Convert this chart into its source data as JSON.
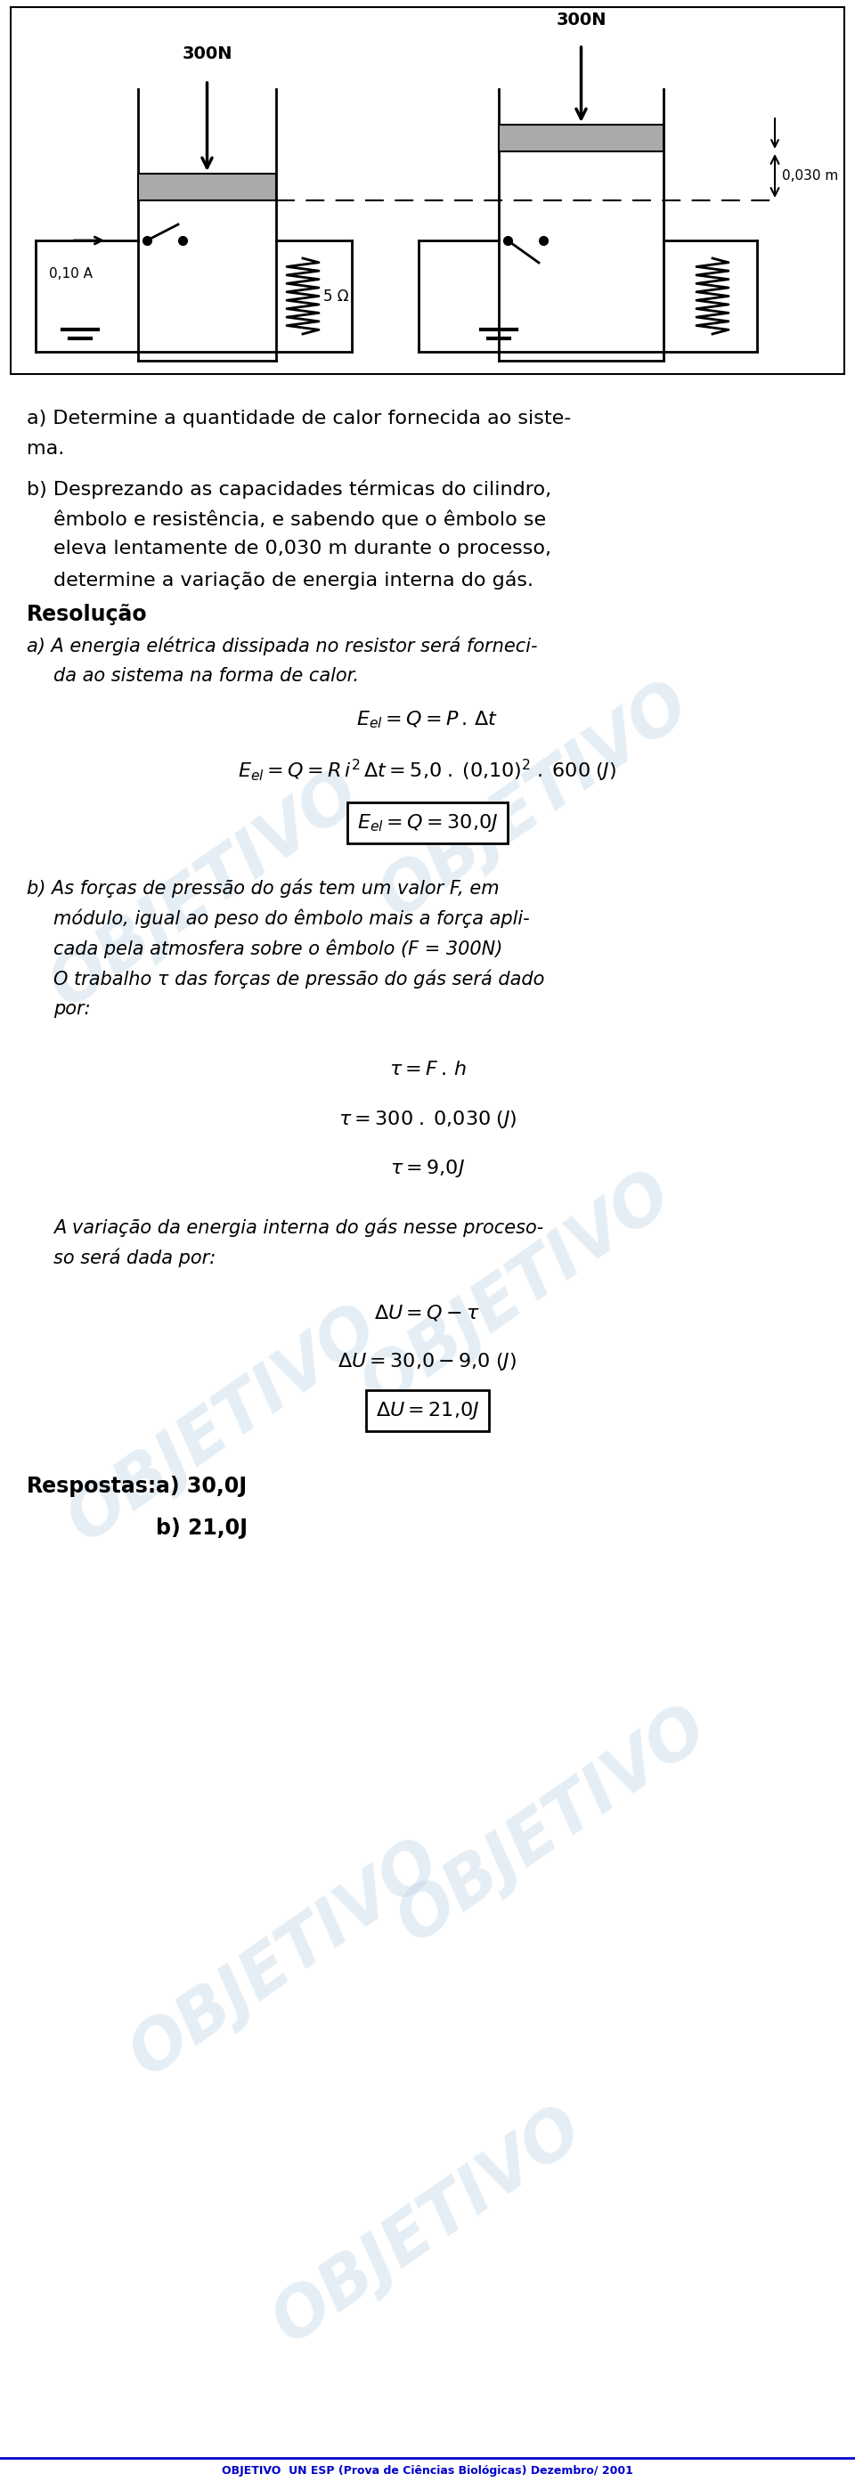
{
  "bg_color": "#ffffff",
  "watermark": "OBJETIVO",
  "diagram": {
    "label_300N_left": "300N",
    "label_300N_right": "300N",
    "label_0030": "0,030 m",
    "label_010A": "0,10 A",
    "label_5ohm": "5 Ω"
  },
  "question_a": "a) Determine a quantidade de calor fornecida ao siste-",
  "question_a2": "ma.",
  "question_b1": "b) Desprezando as capacidades térmicas do cilindro,",
  "question_b2": "êmbolo e resistência, e sabendo que o êmbolo se",
  "question_b3": "eleva lentamente de 0,030 m durante o processo,",
  "question_b4": "determine a variação de energia interna do gás.",
  "resolucao": "Resolução",
  "sol_a1": "a) A energia elétrica dissipada no resistor será forneci-",
  "sol_a2": "da ao sistema na forma de calor.",
  "eq1": "$E_{el} = Q = P\\, .\\, \\Delta t$",
  "eq2": "$E_{el} = Q = R\\,i^2\\,\\Delta t = 5{,}0\\;.\\;(0{,}10)^2\\;.\\;600\\;(J)$",
  "eq3": "$E_{el} = Q = 30{,}0J$",
  "sol_b1": "b) As forças de pressão do gás tem um valor F, em",
  "sol_b2": "módulo, igual ao peso do êmbolo mais a força apli-",
  "sol_b3": "cada pela atmosfera sobre o êmbolo (F = 300N)",
  "sol_b4": "O trabalho τ das forças de pressão do gás será dado",
  "sol_b5": "por:",
  "eq4": "$\\tau = F\\, .\\, h$",
  "eq5": "$\\tau = 300\\;.\\;0{,}030\\;(J)$",
  "eq6": "$\\tau = 9{,}0J$",
  "sol_c1": "A variação da energia interna do gás nesse proceso-",
  "sol_c2": "so será dada por:",
  "eq7": "$\\Delta U = Q - \\tau$",
  "eq8": "$\\Delta U = 30{,}0 - 9{,}0\\;(J)$",
  "eq9": "$\\Delta U = 21{,}0J$",
  "respostas_label": "Respostas:",
  "resp_a": "a) 30,0J",
  "resp_b": "b) 21,0J",
  "footer": "OBJETIVO  UN ESP (Prova de Ciências Biológicas) Dezembro/ 2001"
}
